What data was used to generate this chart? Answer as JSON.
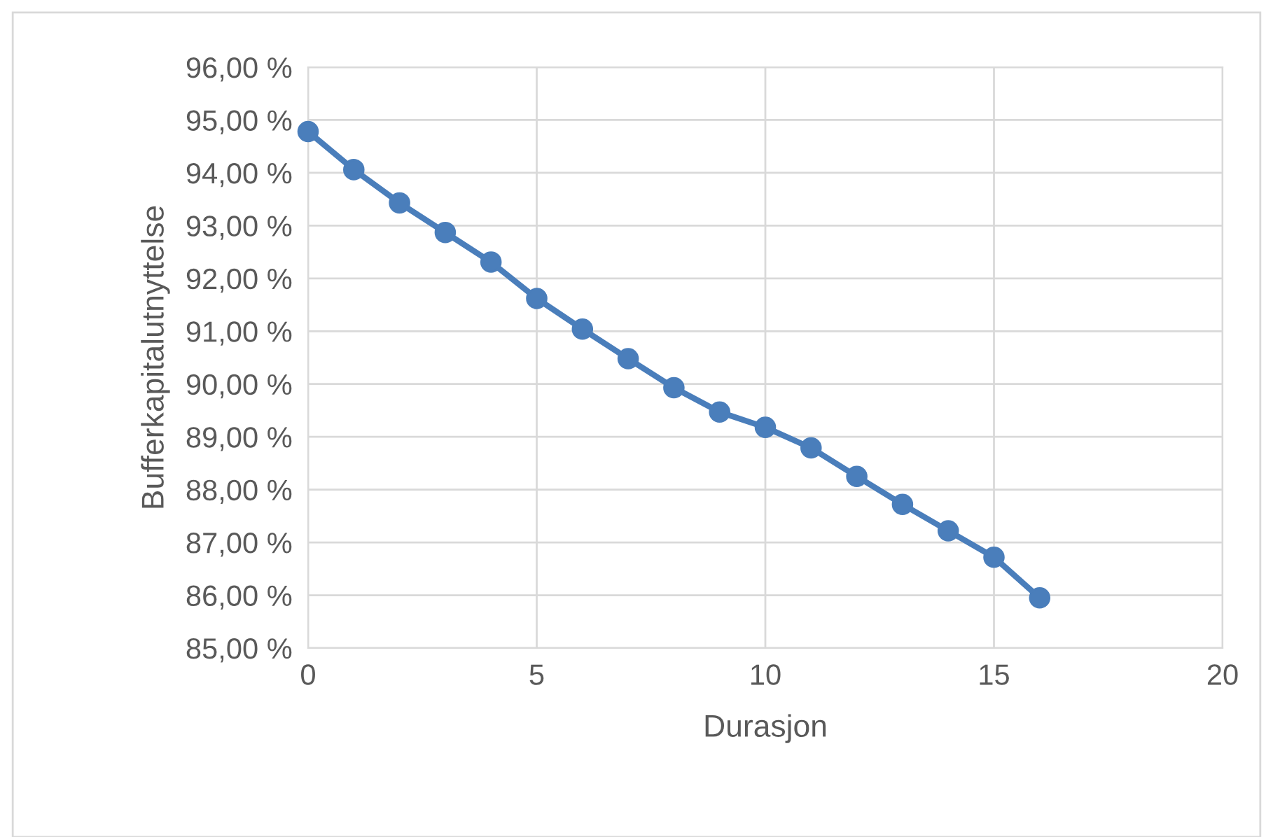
{
  "chart_data": {
    "type": "line",
    "xlabel": "Durasjon",
    "ylabel": "Bufferkapitalutnyttelse",
    "x": [
      0,
      1,
      2,
      3,
      4,
      5,
      6,
      7,
      8,
      9,
      10,
      11,
      12,
      13,
      14,
      15,
      16
    ],
    "series": [
      {
        "color": "#4a7ebb",
        "values": [
          94.78,
          94.06,
          93.43,
          92.87,
          92.31,
          91.62,
          91.04,
          90.48,
          89.93,
          89.47,
          89.18,
          88.79,
          88.25,
          87.72,
          87.22,
          86.72,
          85.95
        ]
      }
    ],
    "xlim": [
      0,
      20
    ],
    "xticks": [
      0,
      5,
      10,
      15,
      20
    ],
    "ylim": [
      85,
      96
    ],
    "yticks": [
      {
        "value": 85,
        "label": "85,00 %"
      },
      {
        "value": 86,
        "label": "86,00 %"
      },
      {
        "value": 87,
        "label": "87,00 %"
      },
      {
        "value": 88,
        "label": "88,00 %"
      },
      {
        "value": 89,
        "label": "89,00 %"
      },
      {
        "value": 90,
        "label": "90,00 %"
      },
      {
        "value": 91,
        "label": "91,00 %"
      },
      {
        "value": 92,
        "label": "92,00 %"
      },
      {
        "value": 93,
        "label": "93,00 %"
      },
      {
        "value": 94,
        "label": "94,00 %"
      },
      {
        "value": 95,
        "label": "95,00 %"
      },
      {
        "value": 96,
        "label": "96,00 %"
      }
    ],
    "grid": true,
    "marker": "circle",
    "line_style": "solid"
  }
}
